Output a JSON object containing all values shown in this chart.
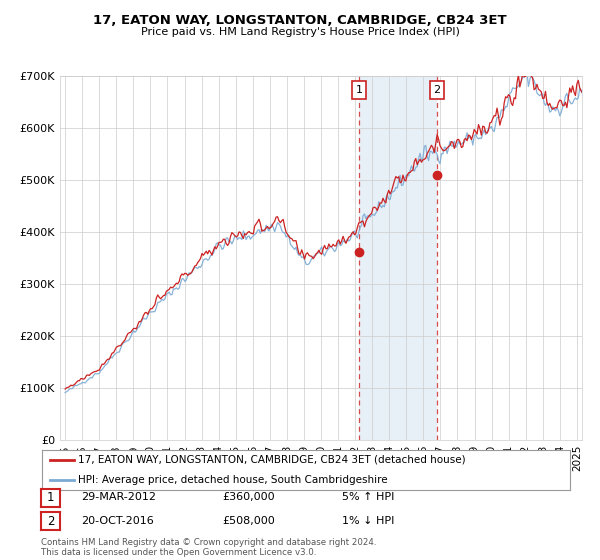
{
  "title": "17, EATON WAY, LONGSTANTON, CAMBRIDGE, CB24 3ET",
  "subtitle": "Price paid vs. HM Land Registry's House Price Index (HPI)",
  "legend_line1": "17, EATON WAY, LONGSTANTON, CAMBRIDGE, CB24 3ET (detached house)",
  "legend_line2": "HPI: Average price, detached house, South Cambridgeshire",
  "annotation1_label": "1",
  "annotation1_date": "29-MAR-2012",
  "annotation1_price": "£360,000",
  "annotation1_hpi": "5% ↑ HPI",
  "annotation2_label": "2",
  "annotation2_date": "20-OCT-2016",
  "annotation2_price": "£508,000",
  "annotation2_hpi": "1% ↓ HPI",
  "footer": "Contains HM Land Registry data © Crown copyright and database right 2024.\nThis data is licensed under the Open Government Licence v3.0.",
  "hpi_color": "#7aaad4",
  "price_color": "#cc2222",
  "sale1_x": 2012.23,
  "sale1_y": 360000,
  "sale2_x": 2016.8,
  "sale2_y": 508000,
  "shaded_x_start": 2012.23,
  "shaded_x_end": 2016.8,
  "ylim_min": 0,
  "ylim_max": 700000,
  "xlim_min": 1994.7,
  "xlim_max": 2025.3,
  "yticks": [
    0,
    100000,
    200000,
    300000,
    400000,
    500000,
    600000,
    700000
  ],
  "xticks": [
    1995,
    1996,
    1997,
    1998,
    1999,
    2000,
    2001,
    2002,
    2003,
    2004,
    2005,
    2006,
    2007,
    2008,
    2009,
    2010,
    2011,
    2012,
    2013,
    2014,
    2015,
    2016,
    2017,
    2018,
    2019,
    2020,
    2021,
    2022,
    2023,
    2024,
    2025
  ]
}
